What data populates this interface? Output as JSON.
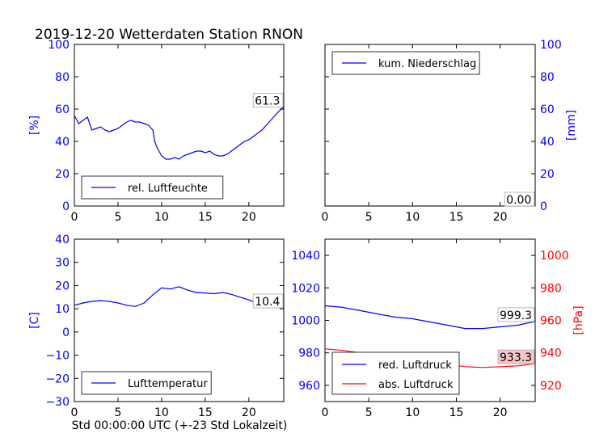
{
  "figure": {
    "title": "2019-12-20 Wetterdaten Station RNON",
    "xlabel": "Std 00:00:00 UTC (+-23 Std Lokalzeit)"
  },
  "colors": {
    "blue": "#0000ff",
    "red": "#ff0000",
    "axis": "#000000",
    "highlight": "#f7c6c6"
  },
  "chart_data": [
    {
      "type": "line",
      "panel": "top-left",
      "ylabel": "[%]",
      "xlim": [
        0,
        24
      ],
      "ylim": [
        0,
        100
      ],
      "xticks": [
        0,
        5,
        10,
        15,
        20
      ],
      "yticks": [
        0,
        20,
        40,
        60,
        80,
        100
      ],
      "legend": {
        "placement": "lower-left",
        "entries": [
          {
            "label": "rel. Luftfeuchte",
            "color": "#0000ff"
          }
        ]
      },
      "last_value_label": "61.3",
      "series": [
        {
          "name": "rel. Luftfeuchte",
          "color": "#0000ff",
          "x": [
            0,
            0.5,
            1,
            1.5,
            2,
            2.5,
            3,
            3.5,
            4,
            4.5,
            5,
            5.5,
            6,
            6.5,
            7,
            7.5,
            8,
            8.5,
            9,
            9.2,
            9.5,
            10,
            10.5,
            11,
            11.5,
            12,
            12.5,
            13,
            13.5,
            14,
            14.5,
            15,
            15.5,
            16,
            16.5,
            17,
            17.5,
            18,
            18.5,
            19,
            19.5,
            20,
            20.5,
            21,
            21.5,
            22,
            22.5,
            23,
            23.5,
            24
          ],
          "y": [
            56,
            51,
            53,
            55,
            47,
            48,
            49,
            47,
            46,
            47,
            48,
            50,
            52,
            53,
            52,
            52,
            51,
            50,
            47,
            40,
            36,
            31,
            29,
            29,
            30,
            29,
            31,
            32,
            33,
            34,
            34,
            33,
            34,
            32,
            31,
            31,
            32,
            34,
            36,
            38,
            40,
            41,
            43,
            45,
            47,
            50,
            53,
            56,
            59,
            61.3
          ]
        }
      ]
    },
    {
      "type": "line",
      "panel": "top-right",
      "ylabel": "[mm]",
      "xlim": [
        0,
        24
      ],
      "ylim": [
        0,
        100
      ],
      "xticks": [
        0,
        5,
        10,
        15,
        20
      ],
      "yticks": [
        0,
        20,
        40,
        60,
        80,
        100
      ],
      "legend": {
        "placement": "upper-left",
        "entries": [
          {
            "label": "kum. Niederschlag",
            "color": "#0000ff"
          }
        ]
      },
      "last_value_label": "0.00",
      "series": [
        {
          "name": "kum. Niederschlag",
          "color": "#0000ff",
          "x": [
            0,
            24
          ],
          "y": [
            0,
            0
          ]
        }
      ]
    },
    {
      "type": "line",
      "panel": "bottom-left",
      "ylabel": "[C]",
      "xlim": [
        0,
        24
      ],
      "ylim": [
        -30,
        40
      ],
      "xticks": [
        0,
        5,
        10,
        15,
        20
      ],
      "yticks": [
        -30,
        -20,
        -10,
        0,
        10,
        20,
        30,
        40
      ],
      "legend": {
        "placement": "lower-left",
        "entries": [
          {
            "label": "Lufttemperatur",
            "color": "#0000ff"
          }
        ]
      },
      "last_value_label": "10.4",
      "series": [
        {
          "name": "Lufttemperatur",
          "color": "#0000ff",
          "x": [
            0,
            1,
            2,
            3,
            4,
            5,
            6,
            7,
            8,
            9,
            10,
            11,
            12,
            13,
            14,
            15,
            16,
            17,
            18,
            19,
            20,
            21,
            22,
            23,
            24
          ],
          "y": [
            11.5,
            12.5,
            13.2,
            13.5,
            13.2,
            12.5,
            11.5,
            11,
            12.5,
            16,
            19,
            18.5,
            19.5,
            18,
            17,
            16.8,
            16.5,
            17,
            16.2,
            15,
            13.8,
            12.5,
            11.8,
            11,
            10.4
          ]
        }
      ]
    },
    {
      "type": "line",
      "panel": "bottom-right",
      "xlim": [
        0,
        24
      ],
      "ylim_left": [
        950,
        1050
      ],
      "ylim_right": [
        910,
        1010
      ],
      "ylabel_right": "[hPa]",
      "xticks": [
        0,
        5,
        10,
        15,
        20
      ],
      "yticks_left": [
        960,
        980,
        1000,
        1020,
        1040
      ],
      "yticks_right": [
        920,
        940,
        960,
        980,
        1000
      ],
      "legend": {
        "placement": "lower-left",
        "entries": [
          {
            "label": "red. Luftdruck",
            "color": "#0000ff"
          },
          {
            "label": "abs. Luftdruck",
            "color": "#ff0000"
          }
        ]
      },
      "last_value_labels": [
        "999.3",
        "933.3"
      ],
      "series": [
        {
          "name": "red. Luftdruck",
          "color": "#0000ff",
          "axis": "left",
          "x": [
            0,
            2,
            4,
            6,
            8,
            10,
            12,
            14,
            16,
            18,
            20,
            22,
            24
          ],
          "y": [
            1009,
            1008,
            1006,
            1004,
            1002,
            1001,
            999,
            997,
            995,
            995,
            996,
            997,
            999.3
          ]
        },
        {
          "name": "abs. Luftdruck",
          "color": "#ff0000",
          "axis": "right",
          "x": [
            0,
            2,
            4,
            6,
            8,
            10,
            12,
            14,
            16,
            18,
            20,
            22,
            24
          ],
          "y": [
            942.5,
            941.5,
            940,
            938.5,
            937,
            936,
            934.5,
            933,
            931.5,
            931,
            931.5,
            932,
            933.3
          ]
        }
      ]
    }
  ]
}
